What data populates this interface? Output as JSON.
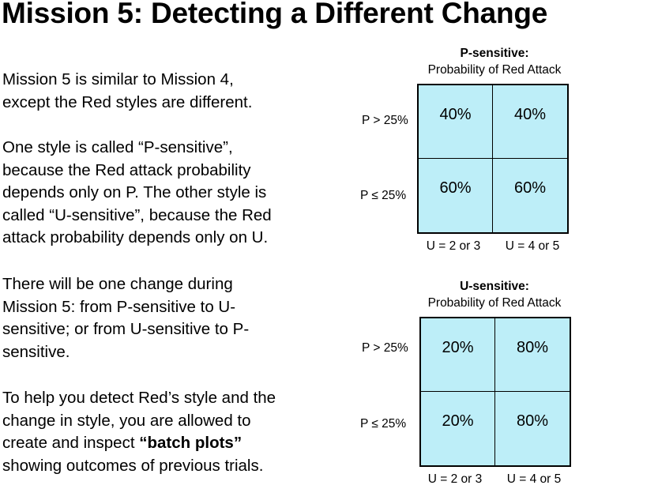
{
  "title": "Mission 5: Detecting a Different Change",
  "paragraphs": {
    "p1": {
      "line1": "Mission 5 is similar to Mission 4,",
      "line2": "except the Red styles are different."
    },
    "p2": {
      "line1": "One style is called “P-sensitive”,",
      "line2": "because the Red attack probability",
      "line3": "depends only on P. The other style is",
      "line4": "called “U-sensitive”, because the Red",
      "line5": "attack probability depends only on U."
    },
    "p3": {
      "line1": "There will be one change during",
      "line2": "Mission 5: from P-sensitive to U-",
      "line3": "sensitive; or from U-sensitive to P-",
      "line4": "sensitive."
    },
    "p4": {
      "line1": "To help you detect Red’s style and the",
      "line2": "change in style, you are allowed to",
      "line3_pre": "create and inspect ",
      "line3_bold": "“batch plots”",
      "line4": "showing outcomes of previous trials."
    }
  },
  "tables": [
    {
      "heading": "P-sensitive:",
      "subheading": "Probability of Red Attack",
      "row_labels": [
        "P > 25%",
        "P ≤ 25%"
      ],
      "col_labels": [
        "U = 2 or 3",
        "U = 4 or 5"
      ],
      "cells": [
        [
          "40%",
          "40%"
        ],
        [
          "60%",
          "60%"
        ]
      ]
    },
    {
      "heading": "U-sensitive:",
      "subheading": "Probability of Red Attack",
      "row_labels": [
        "P > 25%",
        "P ≤ 25%"
      ],
      "col_labels": [
        "U = 2 or 3",
        "U = 4 or 5"
      ],
      "cells": [
        [
          "20%",
          "80%"
        ],
        [
          "20%",
          "80%"
        ]
      ]
    }
  ],
  "colors": {
    "cell_fill": "#bdeef8",
    "grid_border": "#000000",
    "text": "#000000"
  }
}
